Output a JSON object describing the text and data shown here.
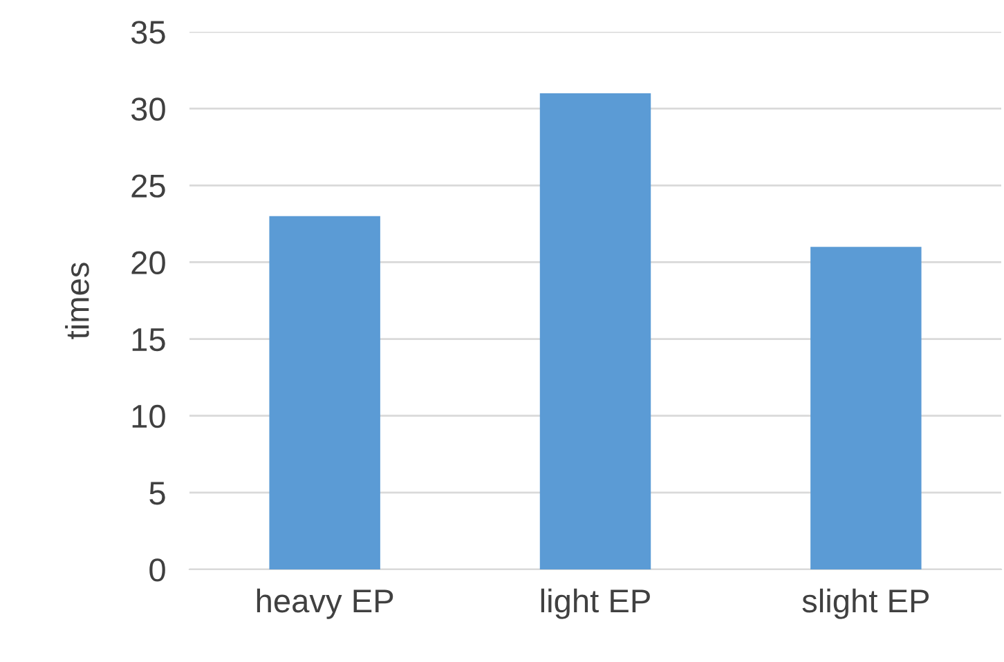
{
  "chart_data": {
    "type": "bar",
    "ylabel": "times",
    "categories": [
      "heavy EP",
      "light EP",
      "slight EP"
    ],
    "values": [
      23,
      31,
      21
    ],
    "color": "#5b9bd5",
    "ylim": [
      0,
      35
    ],
    "yticks": [
      0,
      5,
      10,
      15,
      20,
      25,
      30,
      35
    ],
    "grid": "y"
  }
}
